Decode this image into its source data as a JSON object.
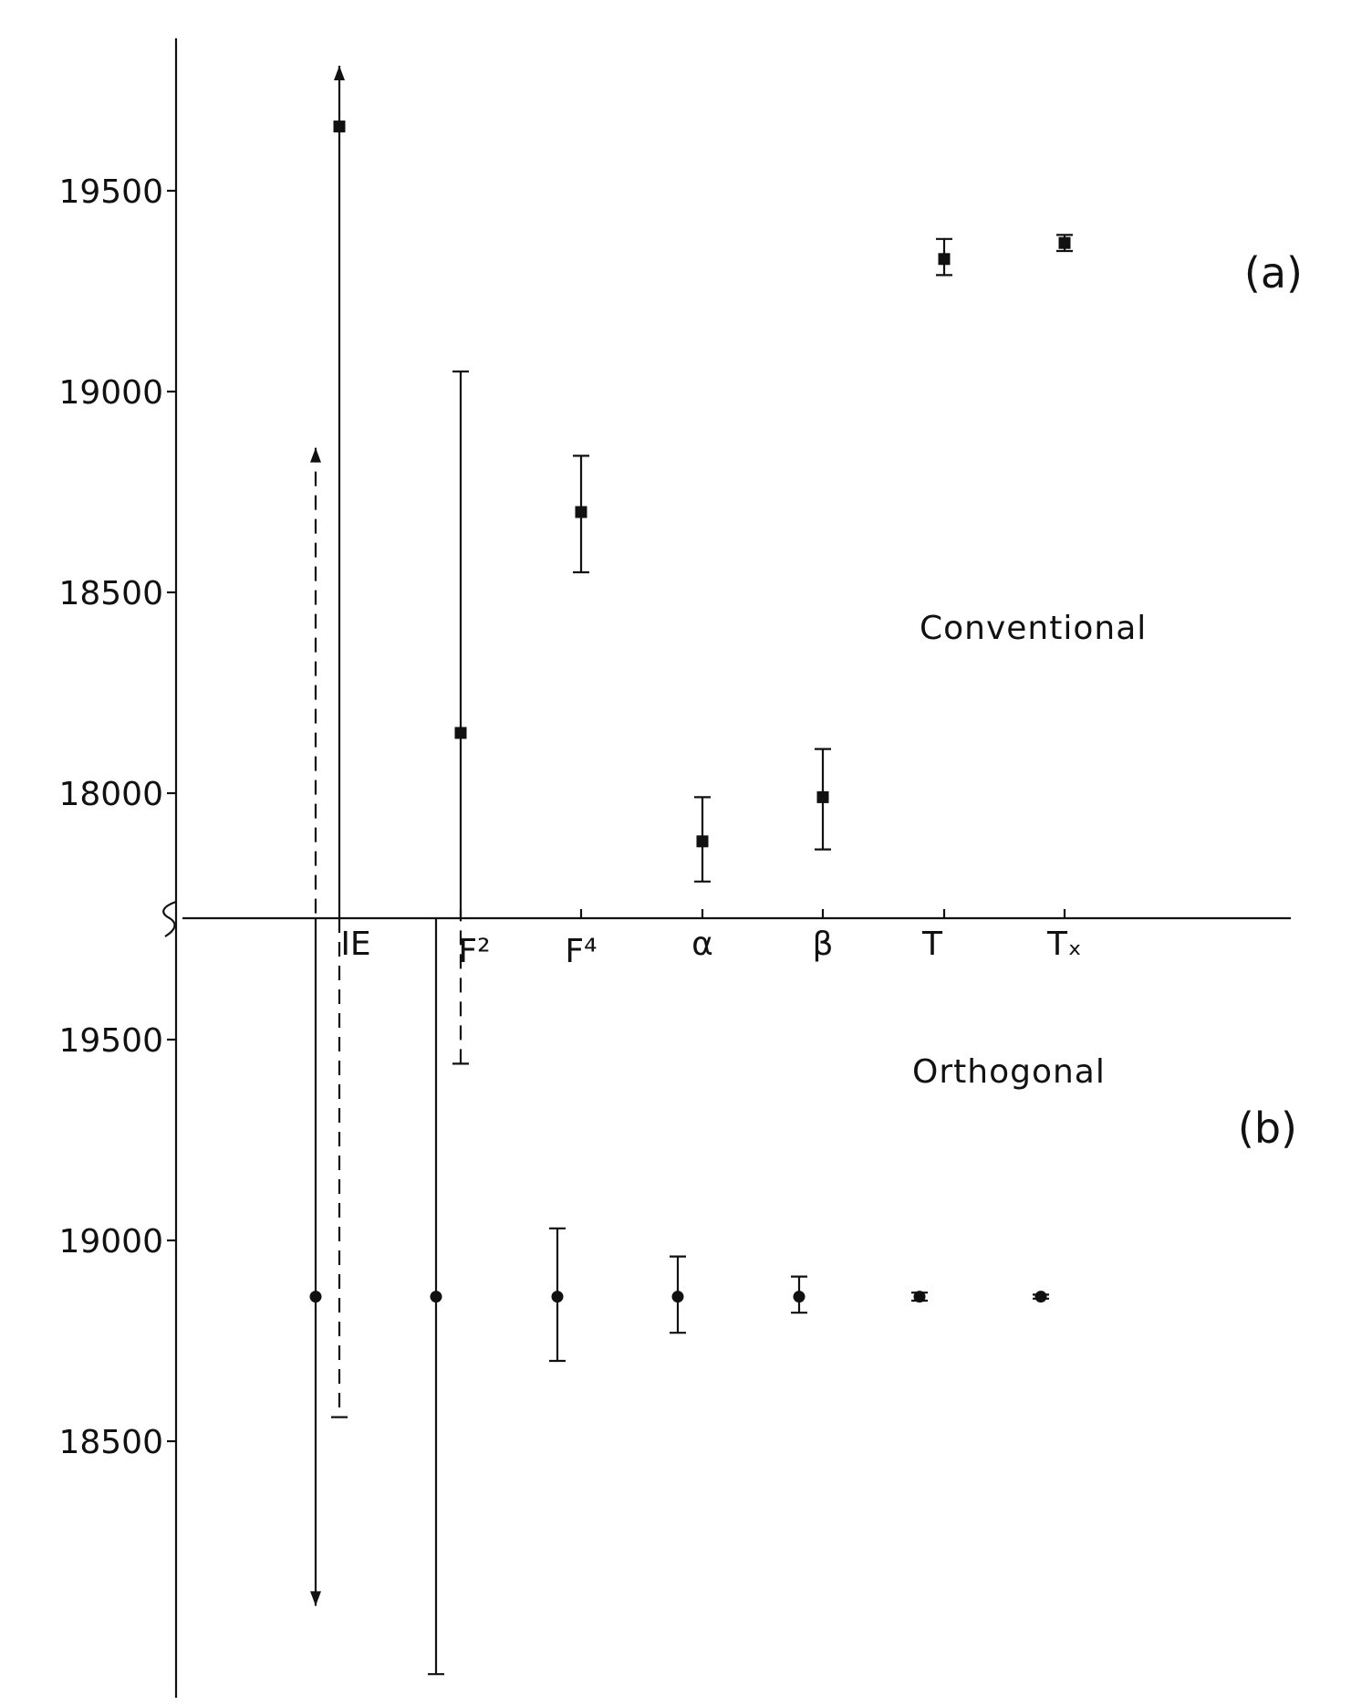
{
  "chart_data": [
    {
      "panel": "(a)",
      "annotation": "Conventional",
      "type": "scatter",
      "categories": [
        "IE",
        "F²",
        "F⁴",
        "α",
        "β",
        "T",
        "Tₓ"
      ],
      "yticks": [
        18000,
        18500,
        19000,
        19500
      ],
      "ylim": [
        17600,
        19800
      ],
      "points": [
        {
          "category": "IE",
          "y": 19660,
          "low": null,
          "high": null,
          "arrow": "up"
        },
        {
          "category": "F²",
          "y": 18150,
          "low": null,
          "high": 19050
        },
        {
          "category": "F⁴",
          "y": 18700,
          "low": 18550,
          "high": 18840
        },
        {
          "category": "α",
          "y": 17880,
          "low": 17780,
          "high": 17990
        },
        {
          "category": "β",
          "y": 17990,
          "low": 17860,
          "high": 18110
        },
        {
          "category": "T",
          "y": 19330,
          "low": 19290,
          "high": 19380
        },
        {
          "category": "Tₓ",
          "y": 19370,
          "low": 19350,
          "high": 19390
        }
      ],
      "dashed_bars": [
        {
          "category": "IE",
          "low": null,
          "high": 18860,
          "arrow": "up"
        }
      ]
    },
    {
      "panel": "(b)",
      "annotation": "Orthogonal",
      "type": "scatter",
      "categories": [
        "IE",
        "F²",
        "F⁴",
        "α",
        "β",
        "T",
        "Tₓ"
      ],
      "yticks": [
        18500,
        19000,
        19500
      ],
      "ylim": [
        18000,
        19800
      ],
      "points": [
        {
          "category": "IE",
          "y": 18860,
          "low": 18090,
          "high": null,
          "arrow": "down"
        },
        {
          "category": "F²",
          "y": 18860,
          "low": 17920,
          "high": null
        },
        {
          "category": "F⁴",
          "y": 18860,
          "low": 18700,
          "high": 19030
        },
        {
          "category": "α",
          "y": 18860,
          "low": 18770,
          "high": 18960
        },
        {
          "category": "β",
          "y": 18860,
          "low": 18820,
          "high": 18910
        },
        {
          "category": "T",
          "y": 18860,
          "low": 18850,
          "high": 18870
        },
        {
          "category": "Tₓ",
          "y": 18860,
          "low": 18855,
          "high": 18865
        }
      ],
      "dashed_bars": [
        {
          "category": "IE",
          "low": 18560,
          "high": null
        },
        {
          "category": "F²",
          "low": null,
          "high": 19440
        }
      ]
    }
  ]
}
